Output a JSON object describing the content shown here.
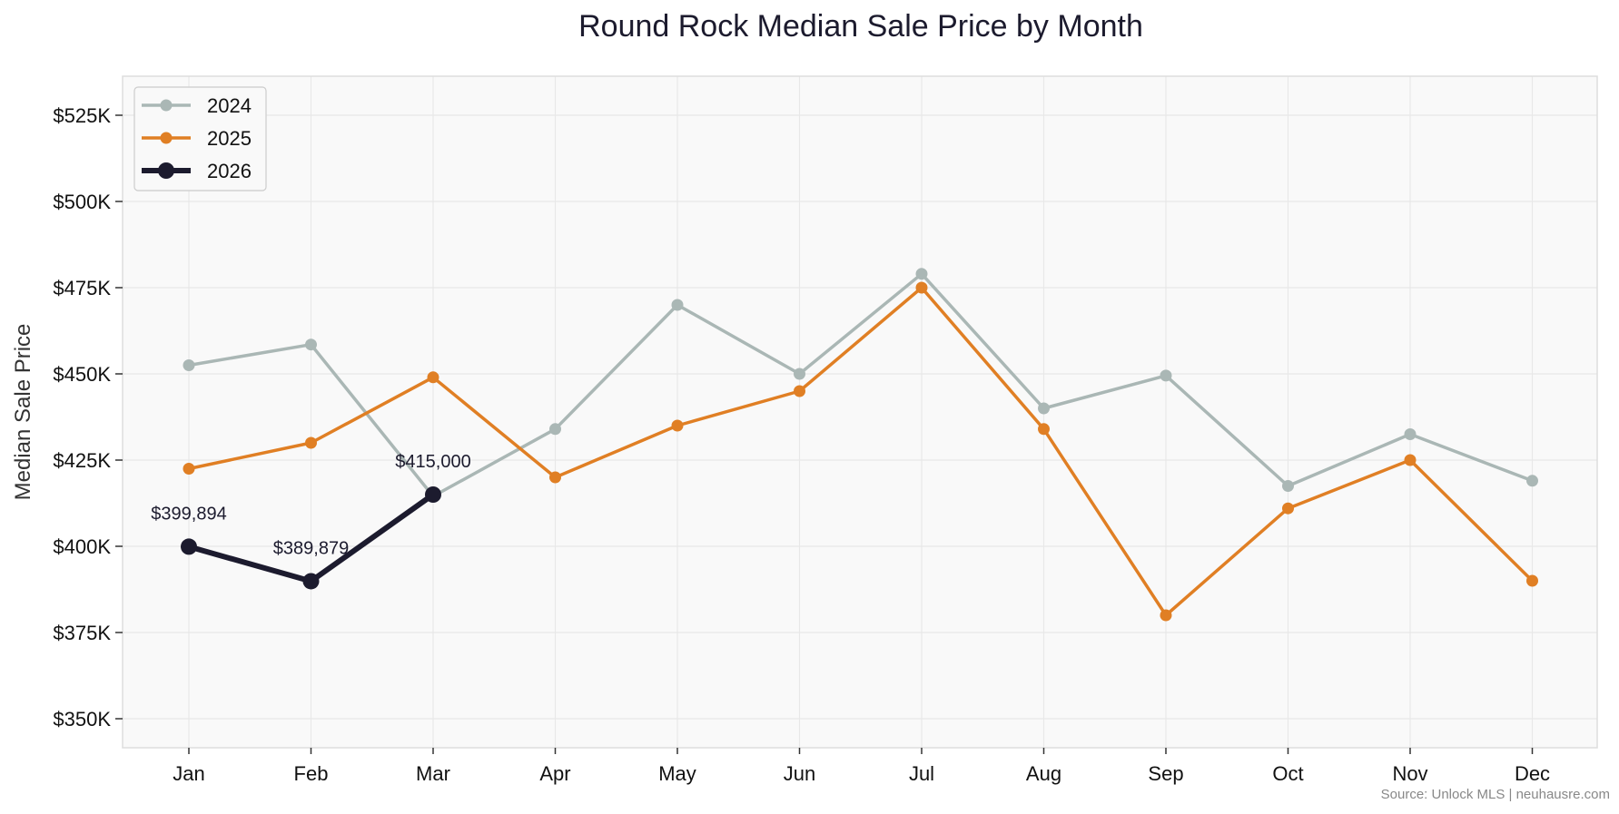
{
  "chart_data": {
    "type": "line",
    "title": "Round Rock Median Sale Price by Month",
    "xlabel": "",
    "ylabel": "Median Sale Price",
    "categories": [
      "Jan",
      "Feb",
      "Mar",
      "Apr",
      "May",
      "Jun",
      "Jul",
      "Aug",
      "Sep",
      "Oct",
      "Nov",
      "Dec"
    ],
    "ylim": [
      342000,
      537000
    ],
    "yticks": [
      350000,
      375000,
      400000,
      425000,
      450000,
      475000,
      500000,
      525000
    ],
    "ytick_labels": [
      "$350K",
      "$375K",
      "$400K",
      "$425K",
      "$450K",
      "$475K",
      "$500K",
      "$525K"
    ],
    "grid": true,
    "legend_position": "upper left",
    "series": [
      {
        "name": "2024",
        "color": "#aab7b5",
        "line_width": 3.5,
        "marker_radius": 6.5,
        "values": [
          452500,
          458500,
          414500,
          434000,
          470000,
          450000,
          479000,
          440000,
          449500,
          417500,
          432500,
          419000
        ]
      },
      {
        "name": "2025",
        "color": "#e07f24",
        "line_width": 3.5,
        "marker_radius": 6.5,
        "values": [
          422500,
          430000,
          449000,
          420000,
          435000,
          445000,
          475000,
          434000,
          380000,
          411000,
          425000,
          390000
        ]
      },
      {
        "name": "2026",
        "color": "#1c1b2e",
        "line_width": 6,
        "marker_radius": 9,
        "values": [
          399894,
          389879,
          415000,
          null,
          null,
          null,
          null,
          null,
          null,
          null,
          null,
          null
        ]
      }
    ],
    "annotations": [
      {
        "category": "Jan",
        "value": 399894,
        "text": "$399,894"
      },
      {
        "category": "Feb",
        "value": 389879,
        "text": "$389,879"
      },
      {
        "category": "Mar",
        "value": 415000,
        "text": "$415,000"
      }
    ],
    "source_note": "Source: Unlock MLS | neuhausre.com"
  },
  "colors": {
    "plot_background": "#f9f9f9",
    "grid": "#e8e8e8",
    "frame": "#dddddd",
    "text": "#1c1b2e"
  }
}
